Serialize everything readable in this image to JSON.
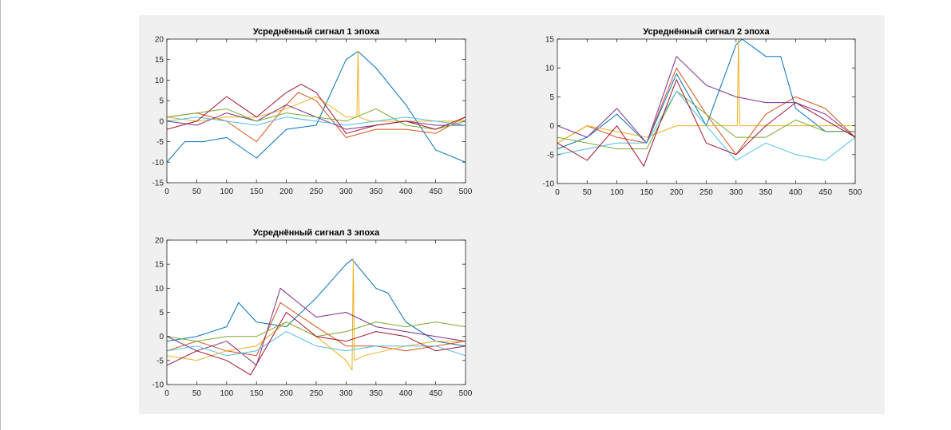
{
  "colors": {
    "figure_bg": "#f0f0f0",
    "axes_bg": "#ffffff",
    "series_palette": [
      "#0072BD",
      "#D95319",
      "#EDB120",
      "#7E2F8E",
      "#77AC30",
      "#4DBEEE",
      "#A2142F"
    ]
  },
  "chart_data": [
    {
      "type": "line",
      "title": "Усреднённый сигнал 1 эпоха",
      "xlabel": "",
      "ylabel": "",
      "xlim": [
        0,
        500
      ],
      "ylim": [
        -15,
        20
      ],
      "xticks": [
        0,
        50,
        100,
        150,
        200,
        250,
        300,
        350,
        400,
        450,
        500
      ],
      "yticks": [
        -15,
        -10,
        -5,
        0,
        5,
        10,
        15,
        20
      ],
      "grid": false,
      "series": [
        {
          "color": "#0072BD",
          "x": [
            0,
            30,
            60,
            100,
            150,
            200,
            250,
            300,
            320,
            350,
            400,
            450,
            500
          ],
          "y": [
            -10,
            -5,
            -5,
            -4,
            -9,
            -2,
            -1,
            15,
            17,
            13,
            4,
            -7,
            -10
          ]
        },
        {
          "color": "#D95319",
          "x": [
            0,
            50,
            100,
            150,
            200,
            220,
            250,
            300,
            350,
            400,
            450,
            500
          ],
          "y": [
            1,
            2,
            0,
            -5,
            4,
            7,
            5,
            -4,
            -2,
            -2,
            -3,
            1
          ]
        },
        {
          "color": "#EDB120",
          "x": [
            0,
            50,
            100,
            150,
            200,
            250,
            300,
            318,
            320,
            322,
            340,
            400,
            450,
            500
          ],
          "y": [
            1,
            0,
            1,
            1,
            3,
            6,
            1,
            1,
            17,
            1,
            0,
            0,
            0,
            0
          ]
        },
        {
          "color": "#7E2F8E",
          "x": [
            0,
            50,
            100,
            150,
            200,
            250,
            300,
            350,
            400,
            450,
            500
          ],
          "y": [
            0,
            -1,
            2,
            0,
            4,
            1,
            -2,
            -1,
            0,
            -1,
            -1
          ]
        },
        {
          "color": "#77AC30",
          "x": [
            0,
            50,
            100,
            150,
            200,
            250,
            300,
            350,
            400,
            450,
            500
          ],
          "y": [
            1,
            2,
            3,
            0,
            2,
            1,
            0,
            3,
            -1,
            -2,
            0
          ]
        },
        {
          "color": "#4DBEEE",
          "x": [
            0,
            50,
            100,
            150,
            200,
            250,
            300,
            350,
            400,
            450,
            500
          ],
          "y": [
            0,
            1,
            0,
            -1,
            1,
            0,
            -1,
            0,
            1,
            0,
            -1
          ]
        },
        {
          "color": "#A2142F",
          "x": [
            0,
            50,
            100,
            150,
            200,
            225,
            250,
            300,
            350,
            400,
            450,
            500
          ],
          "y": [
            -2,
            0,
            6,
            1,
            7,
            9,
            7,
            -3,
            -1,
            0,
            -2,
            1
          ]
        }
      ]
    },
    {
      "type": "line",
      "title": "Усреднённый сигнал 2 эпоха",
      "xlabel": "",
      "ylabel": "",
      "xlim": [
        0,
        500
      ],
      "ylim": [
        -10,
        15
      ],
      "xticks": [
        0,
        50,
        100,
        150,
        200,
        250,
        300,
        350,
        400,
        450,
        500
      ],
      "yticks": [
        -10,
        -5,
        0,
        5,
        10,
        15
      ],
      "grid": false,
      "series": [
        {
          "color": "#0072BD",
          "x": [
            0,
            50,
            100,
            150,
            200,
            250,
            300,
            310,
            350,
            375,
            400,
            450,
            500
          ],
          "y": [
            -4,
            -2,
            2,
            -3,
            9,
            0,
            14,
            15,
            12,
            12,
            3,
            -1,
            -1
          ]
        },
        {
          "color": "#D95319",
          "x": [
            0,
            50,
            100,
            150,
            200,
            250,
            300,
            350,
            400,
            450,
            500
          ],
          "y": [
            -3,
            0,
            -2,
            -3,
            10,
            2,
            -5,
            2,
            5,
            3,
            -2
          ]
        },
        {
          "color": "#EDB120",
          "x": [
            0,
            50,
            100,
            150,
            200,
            250,
            300,
            302,
            304,
            306,
            320,
            400,
            450,
            500
          ],
          "y": [
            -3,
            0,
            -1,
            -2,
            0,
            0,
            0,
            0,
            15,
            0,
            0,
            0,
            0,
            0
          ]
        },
        {
          "color": "#7E2F8E",
          "x": [
            0,
            50,
            100,
            150,
            200,
            250,
            300,
            350,
            400,
            450,
            500
          ],
          "y": [
            0,
            -2,
            3,
            -3,
            12,
            7,
            5,
            4,
            4,
            2,
            -2
          ]
        },
        {
          "color": "#77AC30",
          "x": [
            0,
            50,
            100,
            150,
            200,
            250,
            300,
            350,
            400,
            450,
            500
          ],
          "y": [
            -2,
            -3,
            -4,
            -4,
            6,
            2,
            -2,
            -2,
            1,
            -1,
            -1
          ]
        },
        {
          "color": "#4DBEEE",
          "x": [
            0,
            50,
            100,
            150,
            200,
            250,
            300,
            350,
            400,
            450,
            500
          ],
          "y": [
            -5,
            -4,
            -3,
            -3,
            6,
            0,
            -6,
            -3,
            -5,
            -6,
            -2
          ]
        },
        {
          "color": "#A2142F",
          "x": [
            0,
            50,
            100,
            145,
            200,
            250,
            300,
            350,
            400,
            450,
            500
          ],
          "y": [
            -3,
            -6,
            0,
            -7,
            8,
            -3,
            -5,
            0,
            4,
            1,
            -2
          ]
        }
      ]
    },
    {
      "type": "line",
      "title": "Усреднённый сигнал 3 эпоха",
      "xlabel": "",
      "ylabel": "",
      "xlim": [
        0,
        500
      ],
      "ylim": [
        -10,
        20
      ],
      "xticks": [
        0,
        50,
        100,
        150,
        200,
        250,
        300,
        350,
        400,
        450,
        500
      ],
      "yticks": [
        -10,
        -5,
        0,
        5,
        10,
        15,
        20
      ],
      "grid": false,
      "series": [
        {
          "color": "#0072BD",
          "x": [
            0,
            50,
            100,
            120,
            150,
            200,
            250,
            300,
            310,
            350,
            370,
            400,
            450,
            500
          ],
          "y": [
            -1,
            0,
            2,
            7,
            3,
            2,
            8,
            15,
            16,
            10,
            9,
            3,
            -1,
            -2
          ]
        },
        {
          "color": "#D95319",
          "x": [
            0,
            50,
            100,
            150,
            190,
            250,
            300,
            350,
            400,
            450,
            500
          ],
          "y": [
            -3,
            -1,
            -3,
            -4,
            7,
            2,
            -2,
            -2,
            -3,
            -2,
            -1
          ]
        },
        {
          "color": "#EDB120",
          "x": [
            0,
            50,
            100,
            150,
            200,
            250,
            300,
            310,
            312,
            314,
            330,
            400,
            450,
            500
          ],
          "y": [
            -4,
            -5,
            -3,
            -2,
            3,
            0,
            -5,
            -7,
            16,
            -5,
            -4,
            -2,
            -1,
            -1
          ]
        },
        {
          "color": "#7E2F8E",
          "x": [
            0,
            50,
            100,
            150,
            190,
            250,
            300,
            350,
            400,
            450,
            500
          ],
          "y": [
            0,
            -3,
            -1,
            -6,
            10,
            4,
            5,
            2,
            1,
            0,
            -1
          ]
        },
        {
          "color": "#77AC30",
          "x": [
            0,
            50,
            100,
            150,
            200,
            250,
            300,
            350,
            400,
            450,
            500
          ],
          "y": [
            0,
            -1,
            0,
            0,
            3,
            0,
            1,
            3,
            2,
            3,
            2
          ]
        },
        {
          "color": "#4DBEEE",
          "x": [
            0,
            50,
            100,
            150,
            200,
            250,
            300,
            350,
            400,
            450,
            500
          ],
          "y": [
            -3,
            -2,
            -4,
            -3,
            1,
            -2,
            -3,
            -2,
            -2,
            -2,
            -4
          ]
        },
        {
          "color": "#A2142F",
          "x": [
            0,
            50,
            100,
            140,
            200,
            250,
            300,
            350,
            400,
            450,
            500
          ],
          "y": [
            -6,
            -3,
            -5,
            -8,
            5,
            0,
            -1,
            1,
            0,
            -3,
            -2
          ]
        }
      ]
    }
  ]
}
